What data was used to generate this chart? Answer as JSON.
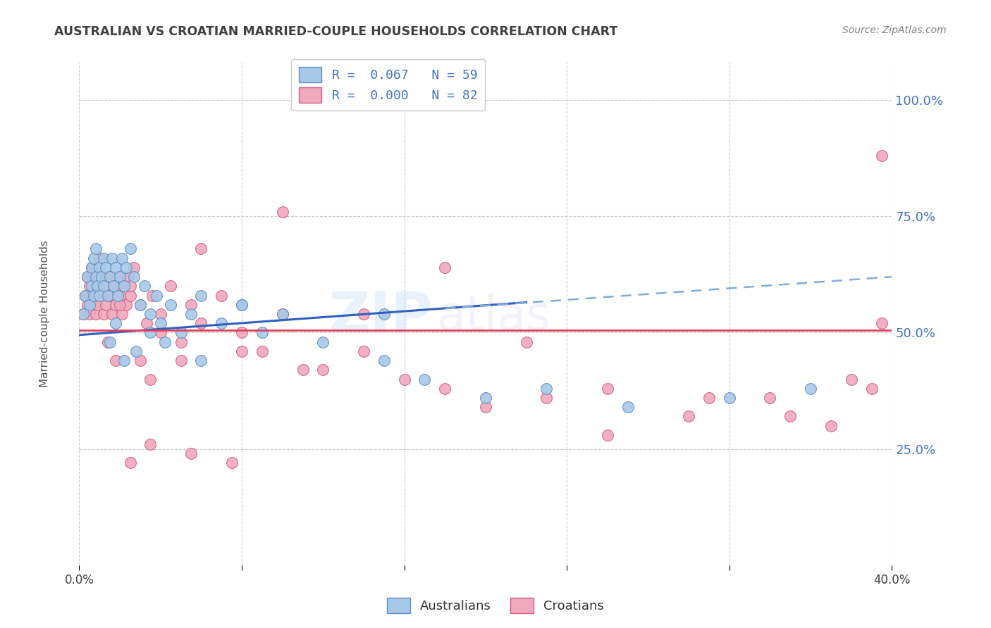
{
  "title": "AUSTRALIAN VS CROATIAN MARRIED-COUPLE HOUSEHOLDS CORRELATION CHART",
  "source": "Source: ZipAtlas.com",
  "ylabel": "Married-couple Households",
  "xlim": [
    0.0,
    0.4
  ],
  "ylim": [
    0.0,
    1.08
  ],
  "ytick_positions": [
    0.25,
    0.5,
    0.75,
    1.0
  ],
  "ytick_labels": [
    "25.0%",
    "50.0%",
    "75.0%",
    "100.0%"
  ],
  "xtick_positions": [
    0.0,
    0.08,
    0.16,
    0.24,
    0.32,
    0.4
  ],
  "xtick_labels": [
    "0.0%",
    "",
    "",
    "",
    "",
    "40.0%"
  ],
  "watermark_line1": "ZIP",
  "watermark_line2": "atlas",
  "aus_color": "#a8c8e8",
  "aus_edge": "#6090c0",
  "cro_color": "#f0a8be",
  "cro_edge": "#d06080",
  "trend_aus_solid_color": "#3060c0",
  "trend_aus_dash_color": "#80acd8",
  "trend_cro_color": "#e04060",
  "legend_aus_label": "R =  0.067   N = 59",
  "legend_cro_label": "R =  0.000   N = 82",
  "legend_text_color": "#4472c4",
  "title_color": "#404040",
  "source_color": "#808080",
  "ytick_color": "#4472c4",
  "xtick_color": "#404040",
  "grid_color": "#cccccc",
  "aus_x": [
    0.002,
    0.003,
    0.004,
    0.005,
    0.006,
    0.006,
    0.007,
    0.007,
    0.008,
    0.008,
    0.009,
    0.01,
    0.01,
    0.011,
    0.012,
    0.012,
    0.013,
    0.014,
    0.015,
    0.016,
    0.017,
    0.018,
    0.019,
    0.02,
    0.021,
    0.022,
    0.023,
    0.025,
    0.027,
    0.03,
    0.032,
    0.035,
    0.038,
    0.04,
    0.045,
    0.05,
    0.055,
    0.06,
    0.07,
    0.08,
    0.09,
    0.1,
    0.12,
    0.15,
    0.17,
    0.2,
    0.23,
    0.27,
    0.32,
    0.36,
    0.015,
    0.018,
    0.022,
    0.028,
    0.035,
    0.042,
    0.06,
    0.08,
    0.15
  ],
  "aus_y": [
    0.54,
    0.58,
    0.62,
    0.56,
    0.6,
    0.64,
    0.58,
    0.66,
    0.62,
    0.68,
    0.6,
    0.64,
    0.58,
    0.62,
    0.66,
    0.6,
    0.64,
    0.58,
    0.62,
    0.66,
    0.6,
    0.64,
    0.58,
    0.62,
    0.66,
    0.6,
    0.64,
    0.68,
    0.62,
    0.56,
    0.6,
    0.54,
    0.58,
    0.52,
    0.56,
    0.5,
    0.54,
    0.58,
    0.52,
    0.56,
    0.5,
    0.54,
    0.48,
    0.44,
    0.4,
    0.36,
    0.38,
    0.34,
    0.36,
    0.38,
    0.48,
    0.52,
    0.44,
    0.46,
    0.5,
    0.48,
    0.44,
    0.56,
    0.54
  ],
  "cro_x": [
    0.002,
    0.003,
    0.004,
    0.004,
    0.005,
    0.005,
    0.006,
    0.006,
    0.007,
    0.007,
    0.008,
    0.008,
    0.009,
    0.009,
    0.01,
    0.011,
    0.012,
    0.012,
    0.013,
    0.014,
    0.015,
    0.016,
    0.017,
    0.018,
    0.019,
    0.02,
    0.021,
    0.022,
    0.023,
    0.024,
    0.025,
    0.027,
    0.03,
    0.033,
    0.036,
    0.04,
    0.045,
    0.05,
    0.055,
    0.06,
    0.07,
    0.08,
    0.09,
    0.1,
    0.12,
    0.14,
    0.16,
    0.18,
    0.2,
    0.23,
    0.26,
    0.3,
    0.34,
    0.37,
    0.39,
    0.395,
    0.01,
    0.015,
    0.02,
    0.025,
    0.03,
    0.035,
    0.04,
    0.05,
    0.06,
    0.08,
    0.1,
    0.14,
    0.18,
    0.22,
    0.26,
    0.31,
    0.35,
    0.38,
    0.395,
    0.014,
    0.018,
    0.025,
    0.035,
    0.055,
    0.075,
    0.11
  ],
  "cro_y": [
    0.54,
    0.58,
    0.56,
    0.62,
    0.6,
    0.54,
    0.58,
    0.64,
    0.56,
    0.62,
    0.58,
    0.54,
    0.6,
    0.56,
    0.62,
    0.58,
    0.54,
    0.6,
    0.56,
    0.62,
    0.58,
    0.54,
    0.6,
    0.56,
    0.62,
    0.58,
    0.54,
    0.6,
    0.56,
    0.62,
    0.58,
    0.64,
    0.56,
    0.52,
    0.58,
    0.54,
    0.6,
    0.48,
    0.56,
    0.52,
    0.58,
    0.5,
    0.46,
    0.54,
    0.42,
    0.46,
    0.4,
    0.38,
    0.34,
    0.36,
    0.38,
    0.32,
    0.36,
    0.3,
    0.38,
    0.88,
    0.66,
    0.62,
    0.56,
    0.6,
    0.44,
    0.4,
    0.5,
    0.44,
    0.68,
    0.46,
    0.76,
    0.54,
    0.64,
    0.48,
    0.28,
    0.36,
    0.32,
    0.4,
    0.52,
    0.48,
    0.44,
    0.22,
    0.26,
    0.24,
    0.22,
    0.42
  ],
  "trend_aus_x0": 0.0,
  "trend_aus_y0": 0.495,
  "trend_aus_x1": 0.22,
  "trend_aus_y1": 0.565,
  "trend_aus_dash_x0": 0.18,
  "trend_aus_dash_y0": 0.552,
  "trend_aus_dash_x1": 0.4,
  "trend_aus_dash_y1": 0.62,
  "trend_cro_y": 0.505
}
